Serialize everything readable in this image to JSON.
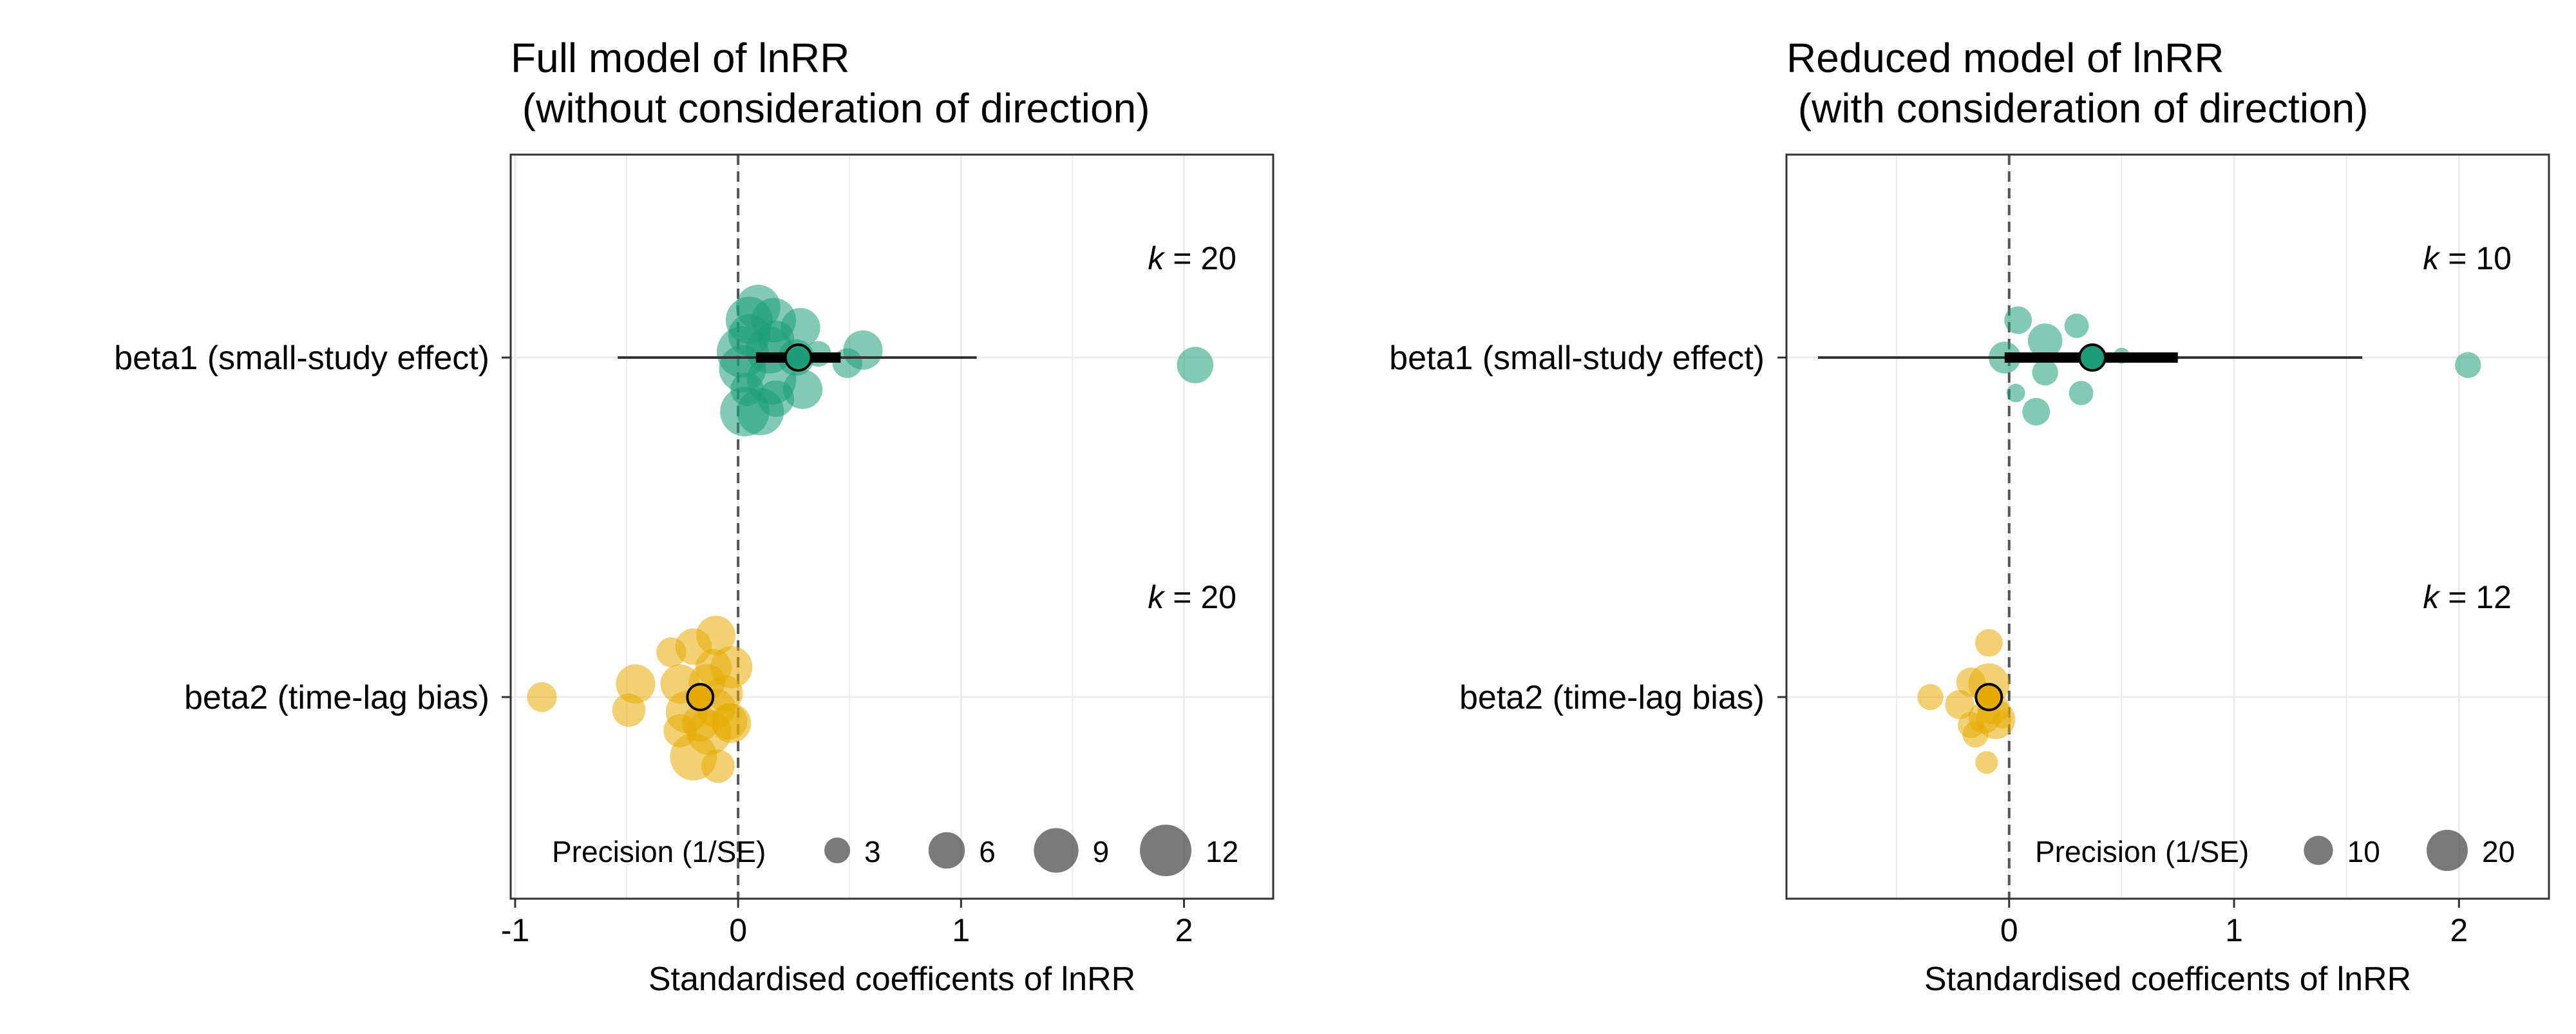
{
  "colors": {
    "beta1": "#1b9e77",
    "beta2": "#e6ab02",
    "grid": "#ebebeb",
    "zero_line": "#555555",
    "legend_point": "#333333"
  },
  "chart_data": [
    {
      "type": "scatter",
      "subtype": "orchard plot",
      "title_line1": "Full model of lnRR",
      "title_line2": " (without consideration of direction)",
      "xlabel": "Standardised coefficents of lnRR",
      "xlim": [
        -1.02,
        2.4
      ],
      "x_ticks": [
        -1,
        0,
        1,
        2
      ],
      "x_tick_labels": [
        "-1",
        "0",
        "1",
        "2"
      ],
      "categories": [
        "beta1 (small-study effect)",
        "beta2 (time-lag bias)"
      ],
      "k_labels": [
        "20",
        "20"
      ],
      "legend": {
        "title": "Precision (1/SE)",
        "values": [
          3,
          6,
          9,
          12
        ],
        "labels": [
          "3",
          "6",
          "9",
          "12"
        ],
        "placement": "bottom-right"
      },
      "series": [
        {
          "category": "beta1 (small-study effect)",
          "estimate": 0.27,
          "ci": [
            0.08,
            0.46
          ],
          "pi": [
            -0.54,
            1.07
          ],
          "points": [
            {
              "x": 0.09,
              "y": 0.27,
              "p": 9
            },
            {
              "x": 0.05,
              "y": 0.2,
              "p": 10
            },
            {
              "x": 0.16,
              "y": 0.2,
              "p": 9
            },
            {
              "x": 0.28,
              "y": 0.16,
              "p": 7
            },
            {
              "x": 0.05,
              "y": 0.12,
              "p": 8
            },
            {
              "x": 0.17,
              "y": 0.1,
              "p": 6
            },
            {
              "x": 0.02,
              "y": 0.03,
              "p": 12
            },
            {
              "x": 0.14,
              "y": 0.04,
              "p": 10
            },
            {
              "x": 0.56,
              "y": 0.04,
              "p": 7
            },
            {
              "x": 0.26,
              "y": 0.0,
              "p": 6
            },
            {
              "x": 0.49,
              "y": -0.03,
              "p": 4
            },
            {
              "x": 0.02,
              "y": -0.06,
              "p": 10
            },
            {
              "x": 0.15,
              "y": -0.12,
              "p": 11
            },
            {
              "x": 0.29,
              "y": -0.17,
              "p": 7
            },
            {
              "x": 0.04,
              "y": -0.17,
              "p": 5
            },
            {
              "x": 0.17,
              "y": -0.22,
              "p": 6
            },
            {
              "x": 0.03,
              "y": -0.29,
              "p": 11
            },
            {
              "x": 0.1,
              "y": -0.29,
              "p": 10
            },
            {
              "x": 0.36,
              "y": 0.02,
              "p": 3
            },
            {
              "x": 2.05,
              "y": -0.04,
              "p": 6
            }
          ]
        },
        {
          "category": "beta2 (time-lag bias)",
          "estimate": -0.17,
          "ci": [
            -0.2,
            -0.14
          ],
          "pi": [
            -0.2,
            -0.14
          ],
          "points": [
            {
              "x": -0.1,
              "y": 0.33,
              "p": 7
            },
            {
              "x": -0.2,
              "y": 0.27,
              "p": 6
            },
            {
              "x": -0.3,
              "y": 0.24,
              "p": 4
            },
            {
              "x": -0.11,
              "y": 0.16,
              "p": 6
            },
            {
              "x": -0.03,
              "y": 0.16,
              "p": 8
            },
            {
              "x": -0.46,
              "y": 0.07,
              "p": 7
            },
            {
              "x": -0.26,
              "y": 0.07,
              "p": 7
            },
            {
              "x": -0.14,
              "y": 0.08,
              "p": 6
            },
            {
              "x": -0.06,
              "y": 0.02,
              "p": 6
            },
            {
              "x": -0.88,
              "y": 0.0,
              "p": 4
            },
            {
              "x": -0.49,
              "y": -0.07,
              "p": 5
            },
            {
              "x": -0.23,
              "y": -0.08,
              "p": 8
            },
            {
              "x": -0.1,
              "y": -0.06,
              "p": 7
            },
            {
              "x": -0.17,
              "y": -0.14,
              "p": 6
            },
            {
              "x": -0.04,
              "y": -0.13,
              "p": 6
            },
            {
              "x": -0.03,
              "y": -0.14,
              "p": 7
            },
            {
              "x": -0.26,
              "y": -0.18,
              "p": 5
            },
            {
              "x": -0.13,
              "y": -0.19,
              "p": 9
            },
            {
              "x": -0.2,
              "y": -0.32,
              "p": 10
            },
            {
              "x": -0.09,
              "y": -0.37,
              "p": 5
            }
          ]
        }
      ]
    },
    {
      "type": "scatter",
      "subtype": "orchard plot",
      "title_line1": "Reduced model of lnRR",
      "title_line2": " (with consideration of direction)",
      "xlabel": "Standardised coefficents of lnRR",
      "xlim": [
        -0.99,
        2.4
      ],
      "x_ticks": [
        0,
        1,
        2
      ],
      "x_tick_labels": [
        "0",
        "1",
        "2"
      ],
      "categories": [
        "beta1 (small-study effect)",
        "beta2 (time-lag bias)"
      ],
      "k_labels": [
        "10",
        "12"
      ],
      "legend": {
        "title": "Precision (1/SE)",
        "values": [
          10,
          20
        ],
        "labels": [
          "10",
          "20"
        ],
        "placement": "bottom-right"
      },
      "series": [
        {
          "category": "beta1 (small-study effect)",
          "estimate": 0.37,
          "ci": [
            -0.02,
            0.75
          ],
          "pi": [
            -0.85,
            1.57
          ],
          "points": [
            {
              "x": 0.04,
              "y": 0.2,
              "p": 9
            },
            {
              "x": 0.3,
              "y": 0.17,
              "p": 7
            },
            {
              "x": 0.16,
              "y": 0.09,
              "p": 14
            },
            {
              "x": -0.02,
              "y": 0.0,
              "p": 12
            },
            {
              "x": 0.5,
              "y": 0.01,
              "p": 3
            },
            {
              "x": 0.16,
              "y": -0.08,
              "p": 8
            },
            {
              "x": 0.03,
              "y": -0.19,
              "p": 4
            },
            {
              "x": 0.32,
              "y": -0.19,
              "p": 7
            },
            {
              "x": 0.12,
              "y": -0.29,
              "p": 9
            },
            {
              "x": 2.04,
              "y": -0.04,
              "p": 8
            }
          ]
        },
        {
          "category": "beta2 (time-lag bias)",
          "estimate": -0.09,
          "ci": [
            -0.13,
            -0.05
          ],
          "pi": [
            -0.13,
            -0.05
          ],
          "points": [
            {
              "x": -0.09,
              "y": 0.29,
              "p": 9
            },
            {
              "x": -0.17,
              "y": 0.08,
              "p": 10
            },
            {
              "x": -0.09,
              "y": 0.07,
              "p": 20
            },
            {
              "x": -0.35,
              "y": 0.0,
              "p": 8
            },
            {
              "x": -0.22,
              "y": -0.04,
              "p": 10
            },
            {
              "x": -0.07,
              "y": -0.06,
              "p": 12
            },
            {
              "x": -0.11,
              "y": -0.11,
              "p": 12
            },
            {
              "x": -0.06,
              "y": -0.12,
              "p": 18
            },
            {
              "x": -0.17,
              "y": -0.15,
              "p": 8
            },
            {
              "x": -0.15,
              "y": -0.2,
              "p": 8
            },
            {
              "x": -0.03,
              "y": -0.12,
              "p": 4
            },
            {
              "x": -0.1,
              "y": -0.35,
              "p": 6
            }
          ]
        }
      ]
    }
  ]
}
